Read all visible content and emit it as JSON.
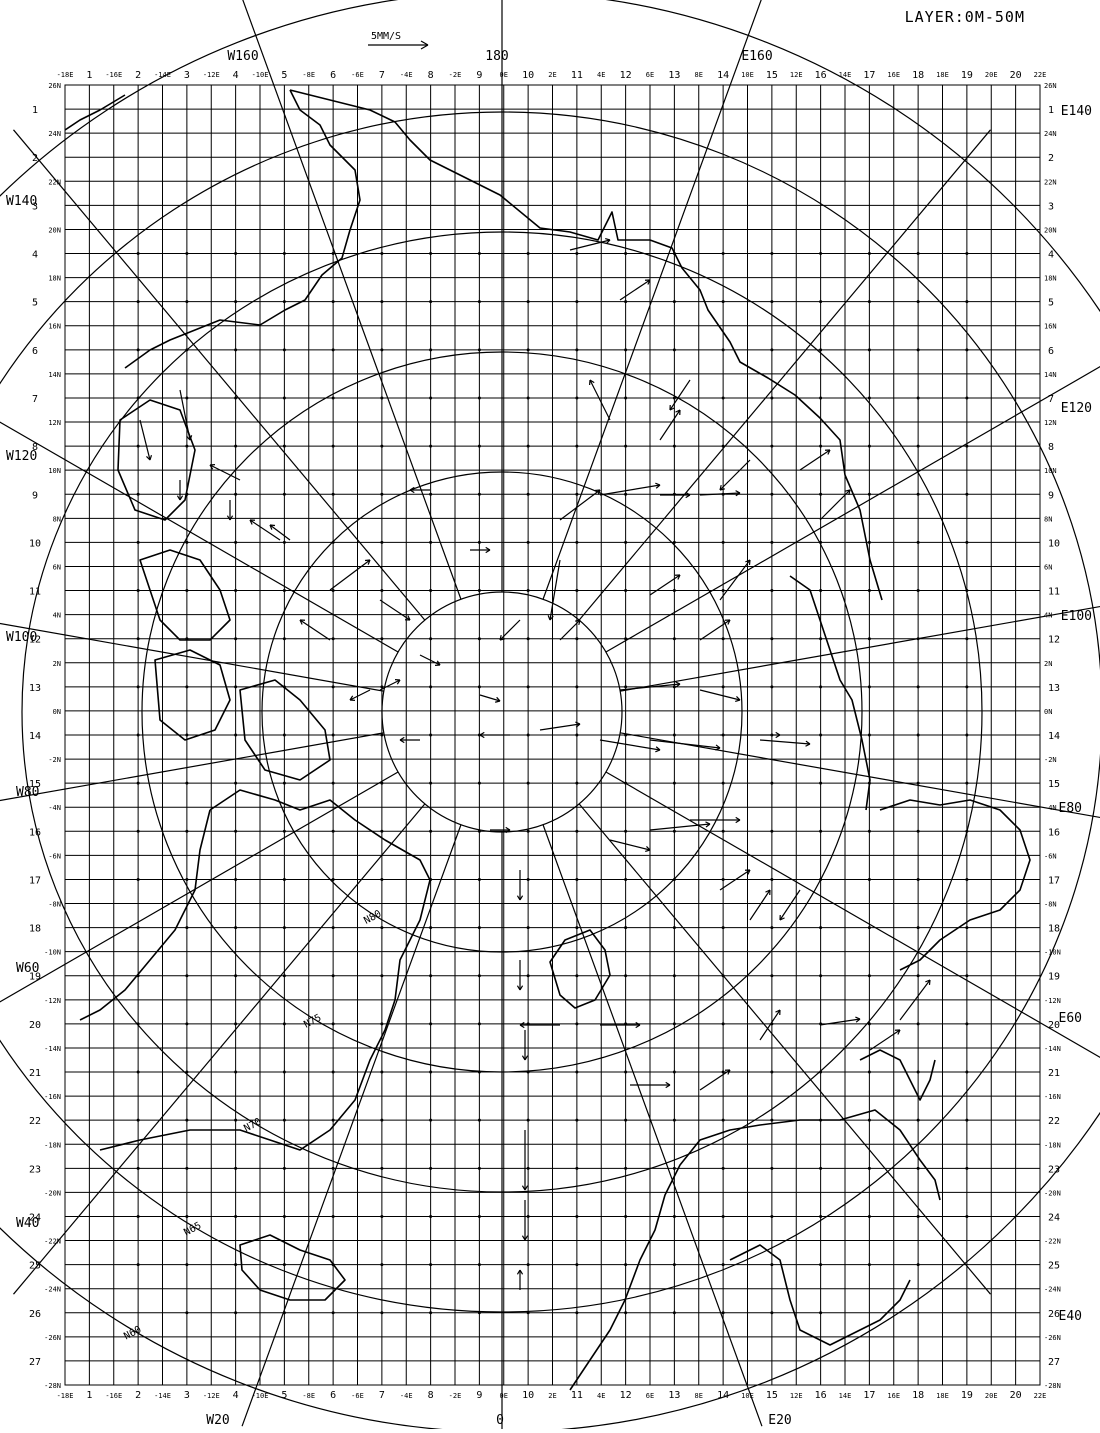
{
  "header": {
    "layer_label": "LAYER:0M-50M",
    "scale_label": "5MM/S"
  },
  "colors": {
    "ink": "#000000",
    "paper": "#ffffff"
  },
  "grid": {
    "col_numbers": [
      "1",
      "2",
      "3",
      "4",
      "5",
      "6",
      "7",
      "8",
      "9",
      "10",
      "11",
      "12",
      "13",
      "14",
      "15",
      "16",
      "17",
      "18",
      "19",
      "20"
    ],
    "top_col_lines": [
      "-18E",
      "-16E",
      "-14E",
      "-12E",
      "-10E",
      "-8E",
      "-6E",
      "-4E",
      "-2E",
      "0E",
      "2E",
      "4E",
      "6E",
      "8E",
      "10E",
      "12E",
      "14E",
      "16E",
      "18E",
      "20E",
      "22E"
    ],
    "bottom_col_lines": [
      "-18E",
      "-16E",
      "-14E",
      "-12E",
      "-10E",
      "-8E",
      "-6E",
      "-4E",
      "-2E",
      "0E",
      "2E",
      "4E",
      "6E",
      "8E",
      "10E",
      "12E",
      "14E",
      "16E",
      "18E",
      "20E",
      "22E"
    ],
    "row_numbers": [
      "1",
      "2",
      "3",
      "4",
      "5",
      "6",
      "7",
      "8",
      "9",
      "10",
      "11",
      "12",
      "13",
      "14",
      "15",
      "16",
      "17",
      "18",
      "19",
      "20",
      "21",
      "22",
      "23",
      "24",
      "25",
      "26",
      "27"
    ],
    "row_numbers_right": [
      "1",
      "2",
      "3",
      "4",
      "5",
      "6",
      "7",
      "8",
      "9",
      "10",
      "11",
      "12",
      "13",
      "14",
      "15",
      "16",
      "17",
      "18",
      "19",
      "20",
      "21",
      "22",
      "23",
      "24",
      "25",
      "26",
      "27"
    ],
    "row_lines": [
      "26N",
      "24N",
      "22N",
      "20N",
      "18N",
      "16N",
      "14N",
      "12N",
      "10N",
      "8N",
      "6N",
      "4N",
      "2N",
      "0N",
      "-2N",
      "-4N",
      "-6N",
      "-8N",
      "-10N",
      "-12N",
      "-14N",
      "-16N",
      "-18N",
      "-20N",
      "-22N",
      "-24N",
      "-26N",
      "-28N"
    ],
    "row_lines_right": [
      "26N",
      "24N",
      "22N",
      "20N",
      "18N",
      "16N",
      "14N",
      "12N",
      "10N",
      "8N",
      "6N",
      "4N",
      "2N",
      "0N",
      "-2N",
      "-4N",
      "-6N",
      "-8N",
      "-10N",
      "-12N",
      "-14N",
      "-16N",
      "-18N",
      "-20N",
      "-22N",
      "-24N",
      "-26N",
      "-28N"
    ]
  },
  "meridians": {
    "top": [
      "W160",
      "180",
      "E160"
    ],
    "left": [
      "W140",
      "W120",
      "W100",
      "W80",
      "W60",
      "W40"
    ],
    "right": [
      "E140",
      "E120",
      "E100",
      "E80",
      "E60",
      "E40"
    ],
    "bottom": [
      "W20",
      "0",
      "E20"
    ]
  },
  "parallels": [
    "N60",
    "N65",
    "N70",
    "N75",
    "N80"
  ]
}
